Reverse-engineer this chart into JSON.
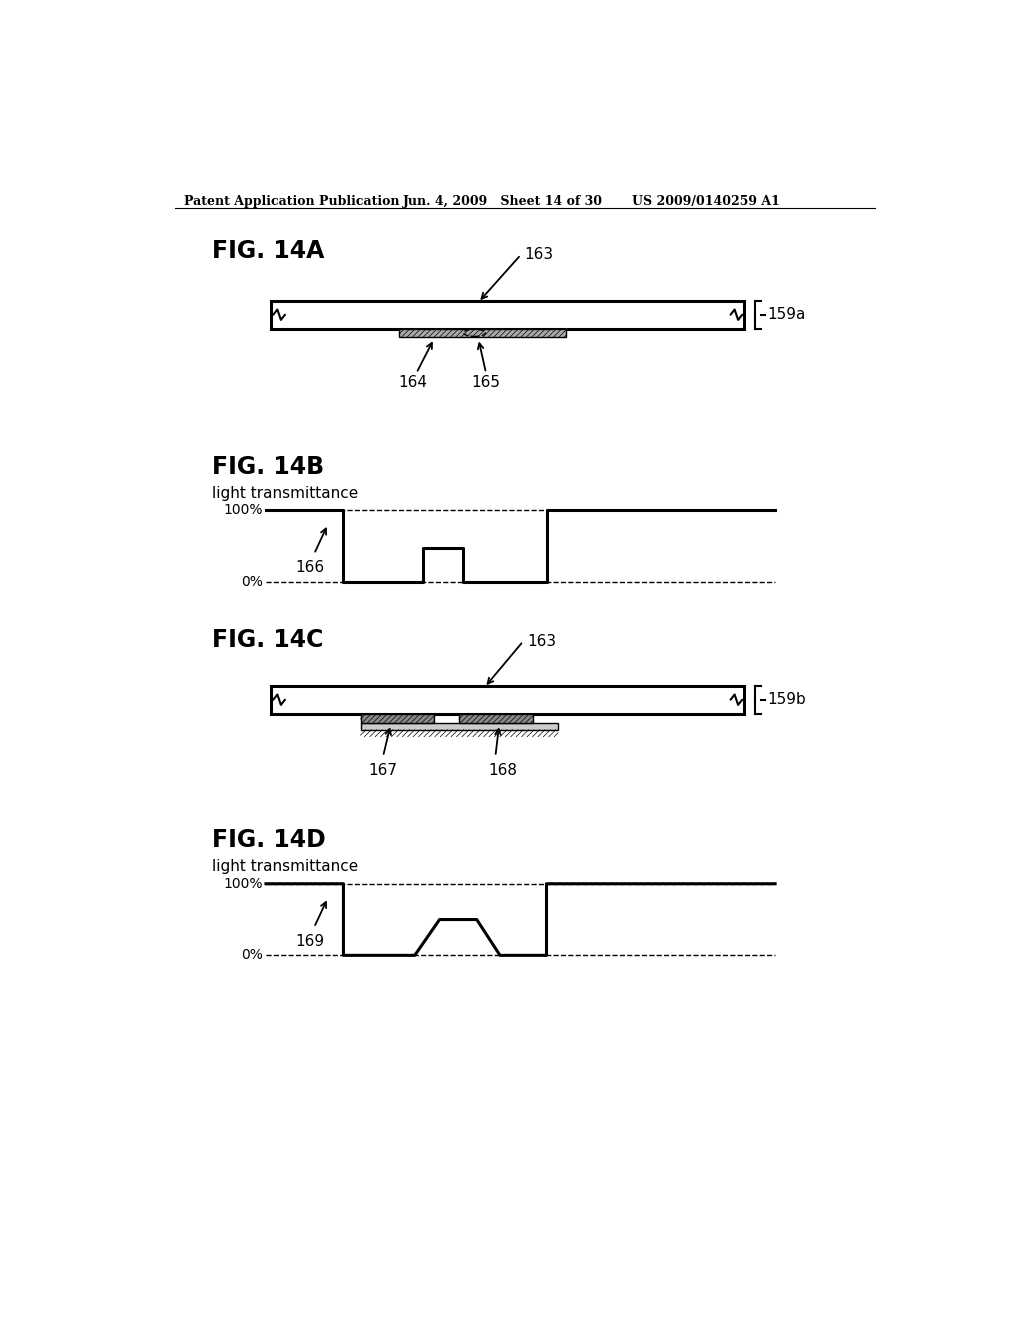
{
  "bg_color": "#ffffff",
  "header_left": "Patent Application Publication",
  "header_mid": "Jun. 4, 2009   Sheet 14 of 30",
  "header_right": "US 2009/0140259 A1",
  "fig_labels": [
    "FIG. 14A",
    "FIG. 14B",
    "FIG. 14C",
    "FIG. 14D"
  ],
  "label_163_14A": "163",
  "label_159a": "159a",
  "label_164": "164",
  "label_165": "165",
  "label_166": "166",
  "label_light_trans": "light transmittance",
  "label_100": "100%",
  "label_0": "0%",
  "label_163_14C": "163",
  "label_159b": "159b",
  "label_167": "167",
  "label_168": "168",
  "label_169": "169"
}
